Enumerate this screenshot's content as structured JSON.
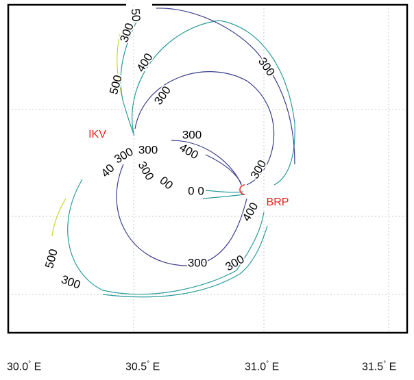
{
  "chart_data": {
    "type": "contour",
    "title": "",
    "xlabel": "",
    "ylabel": "",
    "grid": true,
    "x_ticks": [
      {
        "value": "30.0",
        "unit": "E"
      },
      {
        "value": "30.5",
        "unit": "E"
      },
      {
        "value": "31.0",
        "unit": "E"
      },
      {
        "value": "31.5",
        "unit": "E"
      }
    ],
    "stations": [
      {
        "name": "IKV",
        "color": "#e8231e"
      },
      {
        "name": "BRP",
        "color": "#e8231e"
      }
    ],
    "contour_levels": [
      {
        "value": 300,
        "color": "#3a3c8c"
      },
      {
        "value": 400,
        "color": "#2a9b9a"
      },
      {
        "value": 500,
        "color": "#c8d62a"
      }
    ],
    "contour_labels": [
      {
        "id": "upper-left-300",
        "text": "300"
      },
      {
        "id": "upper-left-400",
        "text": "400"
      },
      {
        "id": "upper-left-500",
        "text": "500"
      },
      {
        "id": "top-50",
        "text": "50"
      },
      {
        "id": "upper-right-300",
        "text": "300"
      },
      {
        "id": "inner-loop-300",
        "text": "300"
      },
      {
        "id": "center-300-a",
        "text": "300"
      },
      {
        "id": "center-300-b",
        "text": "300"
      },
      {
        "id": "center-300-c",
        "text": "300"
      },
      {
        "id": "center-40",
        "text": "40"
      },
      {
        "id": "center-400",
        "text": "400"
      },
      {
        "id": "center-300-d",
        "text": "300"
      },
      {
        "id": "center-00",
        "text": "00"
      },
      {
        "id": "center-0-0",
        "text": "0 0"
      },
      {
        "id": "brp-300",
        "text": "300"
      },
      {
        "id": "brp-400",
        "text": "400"
      },
      {
        "id": "lower-left-500",
        "text": "500"
      },
      {
        "id": "lower-left-300",
        "text": "300"
      },
      {
        "id": "bottom-300",
        "text": "300"
      },
      {
        "id": "lower-right-300",
        "text": "300"
      }
    ]
  },
  "colors": {
    "frame": "#000000",
    "grid": "#c8c8c8",
    "station_label": "#e8231e",
    "background": "#ffffff"
  }
}
